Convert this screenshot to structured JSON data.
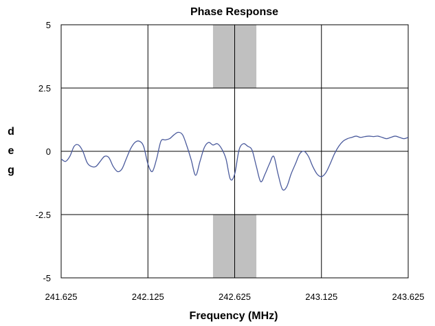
{
  "chart_data": {
    "type": "line",
    "title": "Phase Response",
    "xlabel": "Frequency (MHz)",
    "ylabel": "deg",
    "xlim": [
      241.625,
      243.625
    ],
    "ylim": [
      -5,
      5
    ],
    "x_ticks": [
      241.625,
      242.125,
      242.625,
      243.125,
      243.625
    ],
    "x_tick_labels": [
      "241.625",
      "242.125",
      "242.625",
      "243.125",
      "243.625"
    ],
    "y_ticks": [
      5,
      2.5,
      0,
      -2.5,
      -5
    ],
    "y_tick_labels": [
      "5",
      "2.5",
      "0",
      "-2.5",
      "-5"
    ],
    "grid": true,
    "shaded_band": {
      "x_start": 242.5,
      "x_end": 242.75,
      "y_ranges": [
        [
          2.5,
          5
        ],
        [
          -5,
          -2.5
        ]
      ],
      "color": "#c0c0c0"
    },
    "series": [
      {
        "color": "#4a5a9c",
        "x": [
          241.625,
          241.65,
          241.675,
          241.7,
          241.725,
          241.75,
          241.775,
          241.8,
          241.825,
          241.85,
          241.875,
          241.9,
          241.925,
          241.95,
          241.975,
          242.0,
          242.025,
          242.05,
          242.075,
          242.1,
          242.125,
          242.15,
          242.175,
          242.2,
          242.225,
          242.25,
          242.275,
          242.3,
          242.325,
          242.35,
          242.375,
          242.4,
          242.425,
          242.45,
          242.475,
          242.5,
          242.525,
          242.55,
          242.575,
          242.6,
          242.625,
          242.65,
          242.675,
          242.7,
          242.725,
          242.75,
          242.775,
          242.8,
          242.825,
          242.85,
          242.875,
          242.9,
          242.925,
          242.95,
          242.975,
          243.0,
          243.025,
          243.05,
          243.075,
          243.1,
          243.125,
          243.15,
          243.175,
          243.2,
          243.225,
          243.25,
          243.275,
          243.3,
          243.325,
          243.35,
          243.375,
          243.4,
          243.425,
          243.45,
          243.475,
          243.5,
          243.525,
          243.55,
          243.575,
          243.6,
          243.625
        ],
        "values": [
          -0.3,
          -0.4,
          -0.2,
          0.2,
          0.25,
          0.0,
          -0.45,
          -0.6,
          -0.6,
          -0.4,
          -0.2,
          -0.25,
          -0.6,
          -0.8,
          -0.7,
          -0.3,
          0.1,
          0.35,
          0.4,
          0.2,
          -0.5,
          -0.8,
          -0.3,
          0.4,
          0.45,
          0.5,
          0.65,
          0.75,
          0.65,
          0.2,
          -0.35,
          -0.95,
          -0.4,
          0.15,
          0.35,
          0.25,
          0.3,
          0.1,
          -0.3,
          -1.1,
          -0.9,
          0.05,
          0.3,
          0.2,
          0.05,
          -0.6,
          -1.2,
          -0.9,
          -0.5,
          -0.2,
          -0.9,
          -1.5,
          -1.4,
          -0.9,
          -0.5,
          -0.1,
          0.0,
          -0.2,
          -0.6,
          -0.9,
          -1.0,
          -0.85,
          -0.5,
          -0.1,
          0.2,
          0.4,
          0.5,
          0.55,
          0.6,
          0.55,
          0.58,
          0.6,
          0.58,
          0.6,
          0.55,
          0.5,
          0.55,
          0.6,
          0.55,
          0.5,
          0.55
        ]
      }
    ]
  }
}
